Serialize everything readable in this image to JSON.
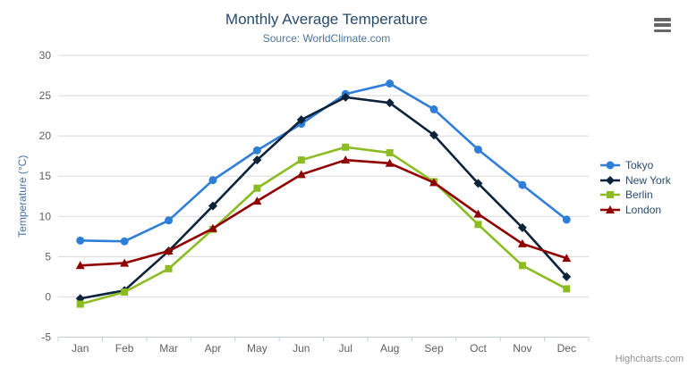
{
  "chart_data": {
    "type": "line",
    "title": "Monthly Average Temperature",
    "subtitle": "Source: WorldClimate.com",
    "categories": [
      "Jan",
      "Feb",
      "Mar",
      "Apr",
      "May",
      "Jun",
      "Jul",
      "Aug",
      "Sep",
      "Oct",
      "Nov",
      "Dec"
    ],
    "xlabel": "",
    "ylabel": "Temperature (°C)",
    "ylim": [
      -5,
      30
    ],
    "yticks": [
      -5,
      0,
      5,
      10,
      15,
      20,
      25,
      30
    ],
    "grid": true,
    "legend_position": "right",
    "series": [
      {
        "name": "Tokyo",
        "color": "#2f7ed8",
        "marker": "circle",
        "values": [
          7.0,
          6.9,
          9.5,
          14.5,
          18.2,
          21.5,
          25.2,
          26.5,
          23.3,
          18.3,
          13.9,
          9.6
        ]
      },
      {
        "name": "New York",
        "color": "#0d233a",
        "marker": "diamond",
        "values": [
          -0.2,
          0.8,
          5.7,
          11.3,
          17.0,
          22.0,
          24.8,
          24.1,
          20.1,
          14.1,
          8.6,
          2.5
        ]
      },
      {
        "name": "Berlin",
        "color": "#8bbc21",
        "marker": "square",
        "values": [
          -0.9,
          0.6,
          3.5,
          8.4,
          13.5,
          17.0,
          18.6,
          17.9,
          14.3,
          9.0,
          3.9,
          1.0
        ]
      },
      {
        "name": "London",
        "color": "#910000",
        "marker": "triangle",
        "values": [
          3.9,
          4.2,
          5.7,
          8.5,
          11.9,
          15.2,
          17.0,
          16.6,
          14.2,
          10.3,
          6.6,
          4.8
        ]
      }
    ],
    "credits": "Highcharts.com"
  },
  "colors": {
    "title": "#274b6d",
    "subtitle": "#4d759e",
    "axis_label": "#606060",
    "axis_title": "#4572a7",
    "grid_line": "#d8d8d8",
    "axis_line": "#c0d0e0",
    "legend_text": "#274b6d",
    "credits": "#909090",
    "export_icon": "#666666"
  },
  "icons": {
    "export_menu": "hamburger-icon"
  }
}
